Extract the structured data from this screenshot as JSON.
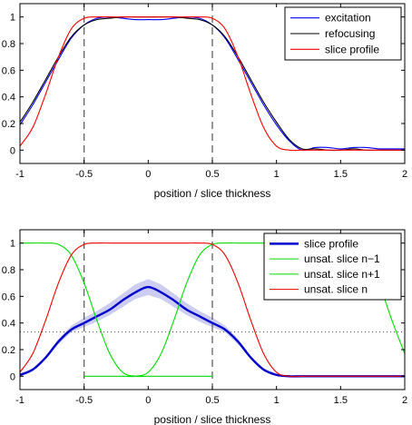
{
  "chart_data": [
    {
      "type": "line",
      "xlabel": "position / slice thickness",
      "ylabel": "",
      "xlim": [
        -1,
        2
      ],
      "ylim": [
        -0.1,
        1.1
      ],
      "xticks": [
        -1,
        -0.5,
        0,
        0.5,
        1,
        1.5,
        2
      ],
      "yticks": [
        0,
        0.2,
        0.4,
        0.6,
        0.8,
        1
      ],
      "xtick_labels": [
        "-1",
        "-0.5",
        "0",
        "0.5",
        "1",
        "1.5",
        "2"
      ],
      "ytick_labels": [
        "0",
        "0.2",
        "0.4",
        "0.6",
        "0.8",
        "1"
      ],
      "legend_position": "top-right",
      "vlines": [
        -0.5,
        0.5
      ],
      "series": [
        {
          "name": "excitation",
          "color": "#0000ff",
          "x": [
            -1,
            -0.9,
            -0.8,
            -0.7,
            -0.6,
            -0.5,
            -0.4,
            -0.3,
            -0.2,
            -0.1,
            0,
            0.1,
            0.2,
            0.3,
            0.4,
            0.5,
            0.6,
            0.7,
            0.8,
            0.9,
            1.0,
            1.1,
            1.2,
            1.3,
            1.4,
            1.5,
            1.6,
            1.7,
            1.8,
            1.9,
            2.0
          ],
          "y": [
            0.19,
            0.34,
            0.51,
            0.68,
            0.84,
            0.94,
            0.99,
            1.0,
            0.99,
            0.98,
            0.98,
            0.98,
            0.99,
            1.0,
            0.99,
            0.94,
            0.84,
            0.68,
            0.51,
            0.34,
            0.19,
            0.07,
            0.0,
            0.02,
            0.02,
            0.01,
            0.02,
            0.02,
            0.01,
            0.01,
            0.01
          ]
        },
        {
          "name": "refocusing",
          "color": "#000000",
          "x": [
            -1,
            -0.9,
            -0.8,
            -0.7,
            -0.6,
            -0.5,
            -0.4,
            -0.3,
            -0.2,
            -0.1,
            0,
            0.1,
            0.2,
            0.3,
            0.4,
            0.5,
            0.6,
            0.7,
            0.8,
            0.9,
            1.0,
            1.1,
            1.2,
            1.3,
            1.4,
            1.5,
            1.6,
            1.7,
            1.8,
            1.9,
            2.0
          ],
          "y": [
            0.21,
            0.36,
            0.53,
            0.7,
            0.85,
            0.94,
            0.98,
            0.99,
            1.0,
            1.0,
            1.0,
            1.0,
            1.0,
            0.99,
            0.98,
            0.94,
            0.85,
            0.7,
            0.53,
            0.36,
            0.21,
            0.08,
            0.01,
            0.01,
            0.0,
            0.0,
            0.01,
            0.0,
            0.0,
            0.0,
            0.0
          ]
        },
        {
          "name": "slice profile",
          "color": "#ff0000",
          "x": [
            -1,
            -0.9,
            -0.8,
            -0.7,
            -0.6,
            -0.5,
            -0.4,
            -0.3,
            -0.2,
            -0.1,
            0,
            0.1,
            0.2,
            0.3,
            0.4,
            0.5,
            0.6,
            0.7,
            0.8,
            0.9,
            1.0,
            1.1,
            1.2,
            1.3,
            1.4,
            1.5,
            1.6,
            1.7,
            1.8,
            1.9,
            2.0
          ],
          "y": [
            0.03,
            0.17,
            0.42,
            0.7,
            0.91,
            0.99,
            1.0,
            1.0,
            1.0,
            1.0,
            1.0,
            1.0,
            1.0,
            1.0,
            1.0,
            0.99,
            0.91,
            0.7,
            0.42,
            0.17,
            0.03,
            0.0,
            0.0,
            0.0,
            0.0,
            0.0,
            0.0,
            0.0,
            0.0,
            0.0,
            0.0
          ]
        }
      ]
    },
    {
      "type": "line",
      "xlabel": "position / slice thickness",
      "ylabel": "",
      "xlim": [
        -1,
        2
      ],
      "ylim": [
        -0.1,
        1.1
      ],
      "xticks": [
        -1,
        -0.5,
        0,
        0.5,
        1,
        1.5,
        2
      ],
      "yticks": [
        0,
        0.2,
        0.4,
        0.6,
        0.8,
        1
      ],
      "xtick_labels": [
        "-1",
        "-0.5",
        "0",
        "0.5",
        "1",
        "1.5",
        "2"
      ],
      "ytick_labels": [
        "0",
        "0.2",
        "0.4",
        "0.6",
        "0.8",
        "1"
      ],
      "legend_position": "top-right",
      "vlines": [
        -0.5,
        0.5
      ],
      "hline": 0.333,
      "band": {
        "color": "#c8c8f0",
        "x": [
          -1,
          -0.9,
          -0.8,
          -0.7,
          -0.6,
          -0.5,
          -0.4,
          -0.3,
          -0.2,
          -0.1,
          0,
          0.1,
          0.2,
          0.3,
          0.4,
          0.5,
          0.6,
          0.7,
          0.8,
          0.9,
          1.0,
          1.1,
          1.2
        ],
        "lower": [
          0.01,
          0.04,
          0.13,
          0.24,
          0.33,
          0.37,
          0.41,
          0.46,
          0.52,
          0.58,
          0.61,
          0.58,
          0.52,
          0.46,
          0.41,
          0.37,
          0.33,
          0.24,
          0.13,
          0.04,
          0.01,
          0.0,
          0.0
        ],
        "upper": [
          0.02,
          0.06,
          0.15,
          0.28,
          0.38,
          0.44,
          0.49,
          0.55,
          0.62,
          0.69,
          0.73,
          0.69,
          0.62,
          0.55,
          0.49,
          0.44,
          0.38,
          0.28,
          0.15,
          0.06,
          0.02,
          0.0,
          0.0
        ]
      },
      "series": [
        {
          "name": "slice profile",
          "color": "#0000cc",
          "x": [
            -1,
            -0.9,
            -0.8,
            -0.7,
            -0.6,
            -0.5,
            -0.4,
            -0.3,
            -0.2,
            -0.1,
            0,
            0.1,
            0.2,
            0.3,
            0.4,
            0.5,
            0.6,
            0.7,
            0.8,
            0.9,
            1.0,
            1.1,
            1.2,
            1.4,
            1.6,
            1.8,
            2.0
          ],
          "y": [
            0.01,
            0.05,
            0.14,
            0.26,
            0.35,
            0.4,
            0.45,
            0.5,
            0.57,
            0.63,
            0.67,
            0.63,
            0.57,
            0.5,
            0.45,
            0.4,
            0.35,
            0.26,
            0.14,
            0.05,
            0.01,
            0.0,
            0.0,
            0.0,
            0.0,
            0.0,
            0.0
          ]
        },
        {
          "name": "unsat. slice n−1",
          "color": "#00dd00",
          "x": [
            -1,
            -0.9,
            -0.8,
            -0.7,
            -0.6,
            -0.5,
            -0.4,
            -0.3,
            -0.2,
            -0.1,
            0,
            0.1,
            0.2,
            0.3,
            0.4,
            0.5
          ],
          "y": [
            1.0,
            1.0,
            1.0,
            0.99,
            0.91,
            0.7,
            0.42,
            0.17,
            0.03,
            0.0,
            0.0,
            0.0,
            0.0,
            0.0,
            0.0,
            0.0
          ]
        },
        {
          "name": "unsat. slice n+1",
          "color": "#00dd00",
          "x": [
            -0.5,
            -0.4,
            -0.3,
            -0.2,
            -0.1,
            0,
            0.1,
            0.2,
            0.3,
            0.4,
            0.5,
            0.6,
            0.7,
            0.8,
            0.9,
            1.0,
            1.1,
            1.2,
            1.3,
            1.4,
            1.5,
            1.6,
            1.7,
            1.8,
            1.9,
            2.0
          ],
          "y": [
            0.0,
            0.0,
            0.0,
            0.0,
            0.0,
            0.03,
            0.17,
            0.42,
            0.7,
            0.91,
            0.99,
            1.0,
            1.0,
            1.0,
            1.0,
            1.0,
            1.0,
            1.0,
            1.0,
            1.0,
            1.0,
            0.99,
            0.91,
            0.7,
            0.42,
            0.17
          ]
        },
        {
          "name": "unsat. slice n",
          "color": "#ee0000",
          "x": [
            -1,
            -0.9,
            -0.8,
            -0.7,
            -0.6,
            -0.5,
            -0.4,
            -0.3,
            -0.2,
            -0.1,
            0,
            0.1,
            0.2,
            0.3,
            0.4,
            0.5,
            0.6,
            0.7,
            0.8,
            0.9,
            1.0,
            1.1,
            1.2,
            1.4,
            1.6,
            1.8,
            2.0
          ],
          "y": [
            0.03,
            0.17,
            0.42,
            0.7,
            0.91,
            0.99,
            1.0,
            1.0,
            1.0,
            1.0,
            1.0,
            1.0,
            1.0,
            1.0,
            1.0,
            0.99,
            0.91,
            0.7,
            0.42,
            0.17,
            0.03,
            0.0,
            0.0,
            0.0,
            0.0,
            0.0,
            0.0
          ]
        }
      ]
    }
  ]
}
